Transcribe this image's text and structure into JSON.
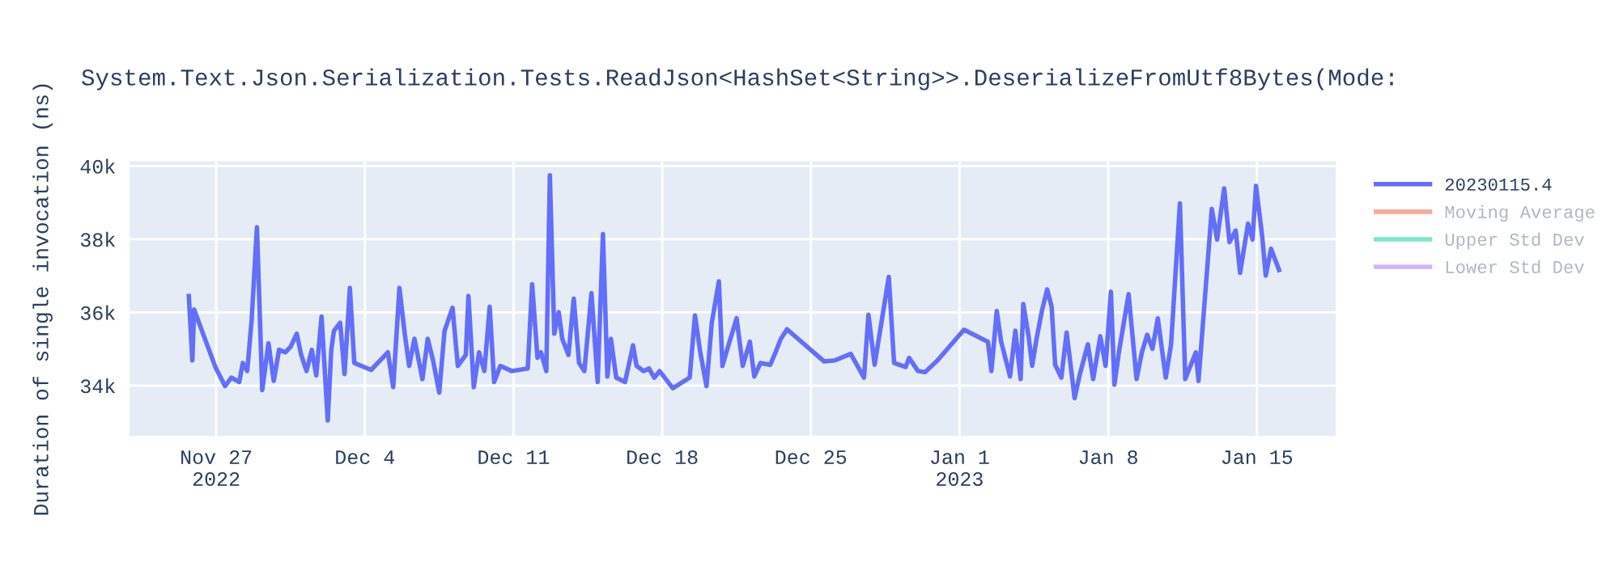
{
  "chart_data": {
    "type": "line",
    "title": "System.Text.Json.Serialization.Tests.ReadJson<HashSet<String>>.DeserializeFromUtf8Bytes(Mode:",
    "ylabel": "Duration of single invocation (ns)",
    "x": [
      "2022-11-25T17:00",
      "2022-11-25T21:00",
      "2022-11-25T23:00",
      "2022-11-26T23:00",
      "2022-11-27T10:00",
      "2022-11-27T17:00",
      "2022-11-28T02:00",
      "2022-11-28T06:00",
      "2022-11-28T11:00",
      "2022-11-28T16:00",
      "2022-11-28T22:00",
      "2022-11-29T04:00",
      "2022-11-29T11:00",
      "2022-11-29T17:00",
      "2022-11-29T23:00",
      "2022-11-30T06:00",
      "2022-11-30T12:00",
      "2022-11-30T19:00",
      "2022-12-01T00:00",
      "2022-12-01T06:00",
      "2022-12-01T12:00",
      "2022-12-01T17:00",
      "2022-12-01T23:00",
      "2022-12-02T06:00",
      "2022-12-02T10:00",
      "2022-12-02T13:00",
      "2022-12-02T20:00",
      "2022-12-03T01:00",
      "2022-12-03T07:00",
      "2022-12-03T12:00",
      "2022-12-04T07:00",
      "2022-12-05T02:00",
      "2022-12-05T08:00",
      "2022-12-05T15:00",
      "2022-12-05T21:00",
      "2022-12-06T02:00",
      "2022-12-06T08:00",
      "2022-12-06T17:00",
      "2022-12-06T23:00",
      "2022-12-07T05:00",
      "2022-12-07T12:00",
      "2022-12-07T18:00",
      "2022-12-08T03:00",
      "2022-12-08T09:00",
      "2022-12-08T18:00",
      "2022-12-08T21:00",
      "2022-12-09T03:00",
      "2022-12-09T09:00",
      "2022-12-09T15:00",
      "2022-12-09T21:00",
      "2022-12-10T02:00",
      "2022-12-10T09:00",
      "2022-12-10T22:00",
      "2022-12-11T16:00",
      "2022-12-11T21:00",
      "2022-12-12T03:00",
      "2022-12-12T07:00",
      "2022-12-12T13:00",
      "2022-12-12T17:00",
      "2022-12-12T22:00",
      "2022-12-13T03:00",
      "2022-12-13T07:00",
      "2022-12-13T14:00",
      "2022-12-13T20:00",
      "2022-12-14T02:00",
      "2022-12-14T08:00",
      "2022-12-14T16:00",
      "2022-12-14T23:00",
      "2022-12-15T05:00",
      "2022-12-15T10:00",
      "2022-12-15T14:00",
      "2022-12-15T20:00",
      "2022-12-16T06:00",
      "2022-12-16T15:00",
      "2022-12-16T19:00",
      "2022-12-17T03:00",
      "2022-12-17T09:00",
      "2022-12-17T15:00",
      "2022-12-17T21:00",
      "2022-12-18T12:00",
      "2022-12-19T07:00",
      "2022-12-19T13:00",
      "2022-12-19T19:00",
      "2022-12-20T02:00",
      "2022-12-20T08:00",
      "2022-12-20T16:00",
      "2022-12-20T20:00",
      "2022-12-21T04:00",
      "2022-12-21T12:00",
      "2022-12-21T19:00",
      "2022-12-22T03:00",
      "2022-12-22T08:00",
      "2022-12-22T15:00",
      "2022-12-23T02:00",
      "2022-12-23T08:00",
      "2022-12-23T14:00",
      "2022-12-23T21:00",
      "2022-12-25T15:00",
      "2022-12-26T03:00",
      "2022-12-26T21:00",
      "2022-12-27T12:00",
      "2022-12-27T17:00",
      "2022-12-28T00:00",
      "2022-12-28T16:00",
      "2022-12-28T22:00",
      "2022-12-29T11:00",
      "2022-12-29T15:00",
      "2022-12-30T01:00",
      "2022-12-30T09:00",
      "2022-12-30T23:00",
      "2023-01-01T05:00",
      "2023-01-02T08:00",
      "2023-01-02T12:00",
      "2023-01-02T18:00",
      "2023-01-02T23:00",
      "2023-01-03T09:00",
      "2023-01-03T15:00",
      "2023-01-03T21:00",
      "2023-01-04T00:00",
      "2023-01-04T06:00",
      "2023-01-04T10:00",
      "2023-01-04T15:00",
      "2023-01-04T21:00",
      "2023-01-05T03:00",
      "2023-01-05T08:00",
      "2023-01-05T12:00",
      "2023-01-05T19:00",
      "2023-01-06T01:00",
      "2023-01-06T10:00",
      "2023-01-06T16:00",
      "2023-01-07T01:00",
      "2023-01-07T07:00",
      "2023-01-07T15:00",
      "2023-01-07T21:00",
      "2023-01-08T03:00",
      "2023-01-08T07:00",
      "2023-01-08T12:00",
      "2023-01-08T23:00",
      "2023-01-09T08:00",
      "2023-01-09T14:00",
      "2023-01-09T20:00",
      "2023-01-10T02:00",
      "2023-01-10T08:00",
      "2023-01-10T17:00",
      "2023-01-10T23:00",
      "2023-01-11T09:00",
      "2023-01-11T15:00",
      "2023-01-12T03:00",
      "2023-01-12T06:00",
      "2023-01-12T21:00",
      "2023-01-13T03:00",
      "2023-01-13T11:00",
      "2023-01-13T17:00",
      "2023-01-14T00:00",
      "2023-01-14T05:00",
      "2023-01-14T14:00",
      "2023-01-14T19:00",
      "2023-01-14T23:00",
      "2023-01-15T06:00",
      "2023-01-15T10:00",
      "2023-01-15T16:00",
      "2023-01-16T01:00"
    ],
    "series": [
      {
        "name": "20230115.4",
        "color": "#636efa",
        "values": [
          36450,
          34690,
          36080,
          34510,
          33990,
          34220,
          34100,
          34620,
          34400,
          35790,
          38330,
          33880,
          35160,
          34130,
          34980,
          34910,
          35060,
          35420,
          34840,
          34400,
          34980,
          34280,
          35890,
          33050,
          34980,
          35500,
          35720,
          34320,
          36670,
          34620,
          34430,
          34910,
          33960,
          36670,
          35420,
          34540,
          35280,
          34180,
          35280,
          34690,
          33810,
          35500,
          36130,
          34540,
          34840,
          36450,
          33960,
          34910,
          34400,
          36160,
          34100,
          34540,
          34400,
          34470,
          36770,
          34760,
          34910,
          34400,
          39750,
          35420,
          36010,
          35280,
          34840,
          36380,
          34620,
          34400,
          36530,
          34100,
          38140,
          34250,
          35280,
          34220,
          34100,
          35100,
          34540,
          34400,
          34470,
          34220,
          34400,
          33930,
          34220,
          35920,
          34910,
          33990,
          35720,
          36850,
          34540,
          35200,
          35840,
          34540,
          35200,
          34250,
          34620,
          34570,
          34910,
          35280,
          35540,
          34660,
          34690,
          34870,
          34220,
          35940,
          34570,
          36970,
          34620,
          34510,
          34760,
          34400,
          34370,
          34690,
          35530,
          35200,
          34400,
          36040,
          35200,
          34250,
          35500,
          34180,
          36230,
          35350,
          34540,
          35280,
          36040,
          36630,
          36160,
          34570,
          34220,
          35450,
          33660,
          34320,
          35130,
          34180,
          35350,
          34540,
          36570,
          34030,
          34910,
          36500,
          34180,
          34910,
          35390,
          35010,
          35840,
          34220,
          35130,
          38980,
          34180,
          34910,
          34130,
          38830,
          37990,
          39390,
          37920,
          38240,
          37080,
          38430,
          37990,
          39460,
          38070,
          37010,
          37740,
          37160
        ]
      },
      {
        "name": "Moving Average",
        "color": "#ef553b",
        "values": [
          null,
          null,
          null,
          null,
          null,
          null,
          null,
          null,
          null,
          null,
          null,
          null,
          null,
          null,
          null,
          null,
          null,
          null,
          null,
          null,
          null,
          null,
          null,
          null,
          null,
          null,
          null,
          null,
          null,
          null,
          null,
          null,
          null,
          null,
          null,
          null,
          null,
          null,
          null,
          null,
          null,
          null,
          null,
          null,
          null,
          null,
          null,
          null,
          null,
          null,
          null,
          null,
          null,
          null,
          null,
          null,
          null,
          null,
          null,
          null,
          null,
          null,
          null,
          null,
          null,
          null,
          null,
          null,
          null,
          null,
          null,
          null,
          null,
          null,
          null,
          null,
          null,
          null,
          null,
          null,
          null,
          null,
          null,
          null,
          null,
          null,
          null,
          null,
          null,
          null,
          null,
          null,
          null,
          null,
          null,
          null,
          null,
          null,
          null,
          null,
          null,
          null,
          null,
          null,
          null,
          null,
          null,
          null,
          null,
          null,
          null,
          null,
          null,
          null,
          null,
          null,
          null,
          null,
          null,
          null,
          null,
          null,
          null,
          null,
          null,
          null,
          null,
          null,
          null,
          null,
          null,
          null,
          null,
          null,
          null,
          null,
          null,
          null,
          null,
          null,
          null,
          null,
          null,
          null,
          null,
          null,
          null,
          null,
          null,
          null,
          null,
          null,
          null,
          null,
          null,
          null,
          null,
          null,
          null,
          null,
          null,
          null
        ]
      },
      {
        "name": "Upper Std Dev",
        "color": "#00cc96",
        "values": [
          null,
          null,
          null,
          null,
          null,
          null,
          null,
          null,
          null,
          null,
          null,
          null,
          null,
          null,
          null,
          null,
          null,
          null,
          null,
          null,
          null,
          null,
          null,
          null,
          null,
          null,
          null,
          null,
          null,
          null,
          null,
          null,
          null,
          null,
          null,
          null,
          null,
          null,
          null,
          null,
          null,
          null,
          null,
          null,
          null,
          null,
          null,
          null,
          null,
          null,
          null,
          null,
          null,
          null,
          null,
          null,
          null,
          null,
          null,
          null,
          null,
          null,
          null,
          null,
          null,
          null,
          null,
          null,
          null,
          null,
          null,
          null,
          null,
          null,
          null,
          null,
          null,
          null,
          null,
          null,
          null,
          null,
          null,
          null,
          null,
          null,
          null,
          null,
          null,
          null,
          null,
          null,
          null,
          null,
          null,
          null,
          null,
          null,
          null,
          null,
          null,
          null,
          null,
          null,
          null,
          null,
          null,
          null,
          null,
          null,
          null,
          null,
          null,
          null,
          null,
          null,
          null,
          null,
          null,
          null,
          null,
          null,
          null,
          null,
          null,
          null,
          null,
          null,
          null,
          null,
          null,
          null,
          null,
          null,
          null,
          null,
          null,
          null,
          null,
          null,
          null,
          null,
          null,
          null,
          null,
          null,
          null,
          null,
          null,
          null,
          null,
          null,
          null,
          null,
          null,
          null,
          null,
          null,
          null,
          null,
          null,
          null
        ]
      },
      {
        "name": "Lower Std Dev",
        "color": "#ab63fa",
        "values": [
          null,
          null,
          null,
          null,
          null,
          null,
          null,
          null,
          null,
          null,
          null,
          null,
          null,
          null,
          null,
          null,
          null,
          null,
          null,
          null,
          null,
          null,
          null,
          null,
          null,
          null,
          null,
          null,
          null,
          null,
          null,
          null,
          null,
          null,
          null,
          null,
          null,
          null,
          null,
          null,
          null,
          null,
          null,
          null,
          null,
          null,
          null,
          null,
          null,
          null,
          null,
          null,
          null,
          null,
          null,
          null,
          null,
          null,
          null,
          null,
          null,
          null,
          null,
          null,
          null,
          null,
          null,
          null,
          null,
          null,
          null,
          null,
          null,
          null,
          null,
          null,
          null,
          null,
          null,
          null,
          null,
          null,
          null,
          null,
          null,
          null,
          null,
          null,
          null,
          null,
          null,
          null,
          null,
          null,
          null,
          null,
          null,
          null,
          null,
          null,
          null,
          null,
          null,
          null,
          null,
          null,
          null,
          null,
          null,
          null,
          null,
          null,
          null,
          null,
          null,
          null,
          null,
          null,
          null,
          null,
          null,
          null,
          null,
          null,
          null,
          null,
          null,
          null,
          null,
          null,
          null,
          null,
          null,
          null,
          null,
          null,
          null,
          null,
          null,
          null,
          null,
          null,
          null,
          null,
          null,
          null,
          null,
          null,
          null,
          null,
          null,
          null,
          null,
          null,
          null,
          null,
          null,
          null,
          null,
          null,
          null,
          null
        ]
      }
    ],
    "xlim": [
      "2022-11-22T22:00",
      "2023-01-18T17:00"
    ],
    "xticks": [
      {
        "value": "2022-11-27",
        "label": "Nov 27\n2022"
      },
      {
        "value": "2022-12-04",
        "label": "Dec 4"
      },
      {
        "value": "2022-12-11",
        "label": "Dec 11"
      },
      {
        "value": "2022-12-18",
        "label": "Dec 18"
      },
      {
        "value": "2022-12-25",
        "label": "Dec 25"
      },
      {
        "value": "2023-01-01",
        "label": "Jan 1\n2023"
      },
      {
        "value": "2023-01-08",
        "label": "Jan 8"
      },
      {
        "value": "2023-01-15",
        "label": "Jan 15"
      }
    ],
    "ylim": [
      32630,
      40130
    ],
    "yticks": [
      {
        "value": 34000,
        "label": "34k"
      },
      {
        "value": 36000,
        "label": "36k"
      },
      {
        "value": 38000,
        "label": "38k"
      },
      {
        "value": 40000,
        "label": "40k"
      }
    ],
    "grid": true,
    "legend": "top right",
    "marker": "none",
    "line_style": "solid"
  }
}
